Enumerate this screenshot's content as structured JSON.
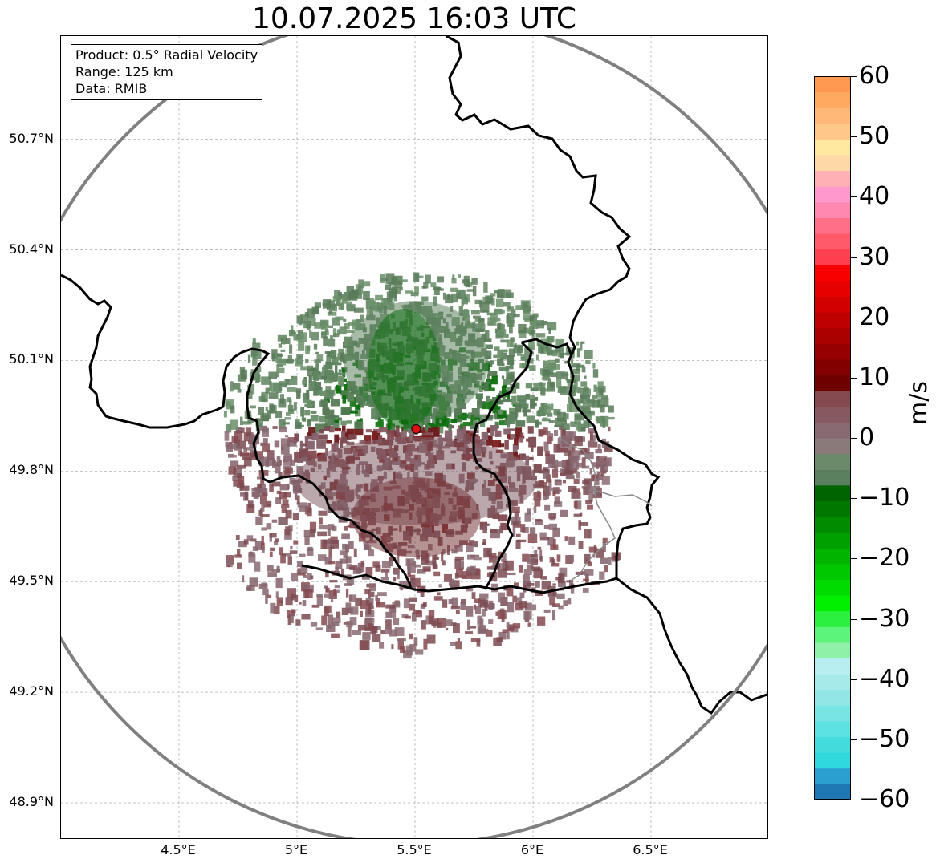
{
  "title": "10.07.2025 16:03 UTC",
  "info": {
    "product": "Product: 0.5° Radial Velocity",
    "range": "Range: 125 km",
    "data": "Data: RMIB"
  },
  "map": {
    "lon_range": [
      4.0,
      7.0
    ],
    "lat_range": [
      48.8,
      50.98
    ],
    "x_ticks": [
      "4.5°E",
      "5°E",
      "5.5°E",
      "6°E",
      "6.5°E"
    ],
    "x_tick_values": [
      4.5,
      5.0,
      5.5,
      6.0,
      6.5
    ],
    "y_ticks": [
      "50.7°N",
      "50.4°N",
      "50.1°N",
      "49.8°N",
      "49.5°N",
      "49.2°N",
      "48.9°N"
    ],
    "y_tick_values": [
      50.7,
      50.4,
      50.1,
      49.8,
      49.5,
      49.2,
      48.9
    ],
    "radar_site": {
      "lon": 5.505,
      "lat": 49.914
    },
    "range_km": 125,
    "colors": {
      "site_marker": "#dd1111",
      "range_ring": "#808080",
      "border": "#000000",
      "grid": "#b0b0b0"
    }
  },
  "colorbar": {
    "label": "m/s",
    "ticks": [
      "60",
      "50",
      "40",
      "30",
      "20",
      "10",
      "0",
      "−10",
      "−20",
      "−30",
      "−40",
      "−50",
      "−60"
    ],
    "tick_values": [
      60,
      50,
      40,
      30,
      20,
      10,
      0,
      -10,
      -20,
      -30,
      -40,
      -50,
      -60
    ],
    "min": -60,
    "max": 60,
    "colors": [
      "#1f77b4",
      "#2a9fd0",
      "#2ed8dc",
      "#42dcdc",
      "#5de2e2",
      "#78e4e4",
      "#92e6e6",
      "#a6eaea",
      "#b8eef0",
      "#8ff0a8",
      "#5cf47a",
      "#2cf040",
      "#00f000",
      "#00dc00",
      "#00c800",
      "#00b400",
      "#00a000",
      "#008c00",
      "#007800",
      "#006400",
      "#5a8060",
      "#6a8a6a",
      "#8a7a7a",
      "#8a6a72",
      "#885860",
      "#844a50",
      "#6e0000",
      "#820000",
      "#960000",
      "#aa0000",
      "#be0000",
      "#d20000",
      "#e60000",
      "#f80000",
      "#ff4050",
      "#ff5a6a",
      "#ff7088",
      "#ff88b0",
      "#ff98cc",
      "#ffb0b4",
      "#ffd8a8",
      "#ffe8a0",
      "#ffc888",
      "#ffb878",
      "#ffa860",
      "#ff9850"
    ]
  }
}
